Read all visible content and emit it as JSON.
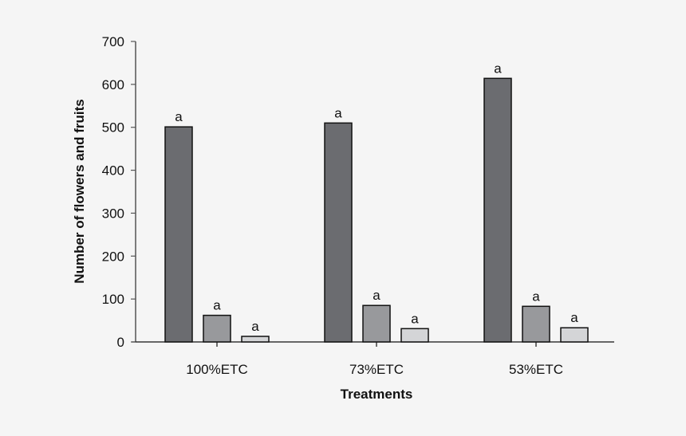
{
  "chart_data": {
    "type": "bar",
    "title": "",
    "xlabel": "Treatments",
    "ylabel": "Number of flowers and fruits",
    "ylim": [
      0,
      700
    ],
    "yticks": [
      0,
      100,
      200,
      300,
      400,
      500,
      600,
      700
    ],
    "categories": [
      "100%ETC",
      "73%ETC",
      "53%ETC"
    ],
    "series": [
      {
        "name": "series-1",
        "color": "#6b6c70",
        "values": [
          501,
          510,
          614
        ],
        "labels": [
          "a",
          "a",
          "a"
        ]
      },
      {
        "name": "series-2",
        "color": "#98999c",
        "values": [
          62,
          85,
          83
        ],
        "labels": [
          "a",
          "a",
          "a"
        ]
      },
      {
        "name": "series-3",
        "color": "#d4d5d7",
        "values": [
          13,
          31,
          33
        ],
        "labels": [
          "a",
          "a",
          "a"
        ]
      }
    ],
    "grid": false,
    "legend": "none"
  }
}
